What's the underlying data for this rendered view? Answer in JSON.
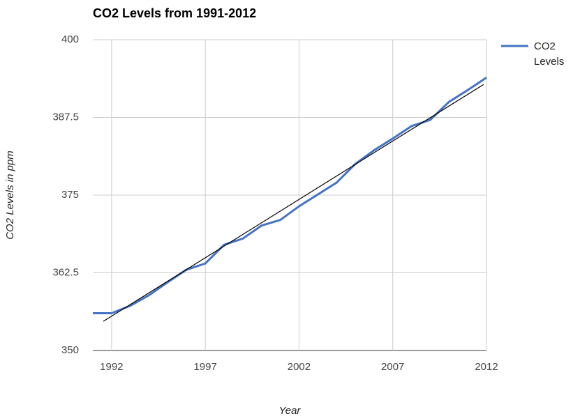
{
  "chart_data": {
    "type": "line",
    "title": "CO2 Levels from 1991-2012",
    "x_label": "Year",
    "y_label": "CO2 Levels in ppm",
    "x": [
      1991,
      1992,
      1993,
      1994,
      1995,
      1996,
      1997,
      1998,
      1999,
      2000,
      2001,
      2002,
      2003,
      2004,
      2005,
      2006,
      2007,
      2008,
      2009,
      2010,
      2011,
      2012
    ],
    "series": [
      {
        "name": "CO2 Levels",
        "color": "#4472c4",
        "values": [
          356.0,
          356.0,
          357.2,
          358.9,
          361.0,
          363.0,
          364.0,
          367.0,
          368.0,
          370.1,
          371.0,
          373.2,
          375.1,
          377.0,
          380.0,
          382.2,
          384.1,
          386.1,
          387.1,
          390.0,
          391.9,
          393.9
        ]
      }
    ],
    "trendline": {
      "x": [
        1991.56,
        2011.85
      ],
      "values": [
        354.7,
        392.8
      ],
      "color": "#000000"
    },
    "xlim": [
      1991,
      2012
    ],
    "xticks": [
      1992,
      1997,
      2002,
      2007,
      2012
    ],
    "ylim": [
      350,
      400
    ],
    "yticks": [
      350,
      362.5,
      375,
      387.5,
      400
    ],
    "grid": true,
    "legend": "right"
  }
}
